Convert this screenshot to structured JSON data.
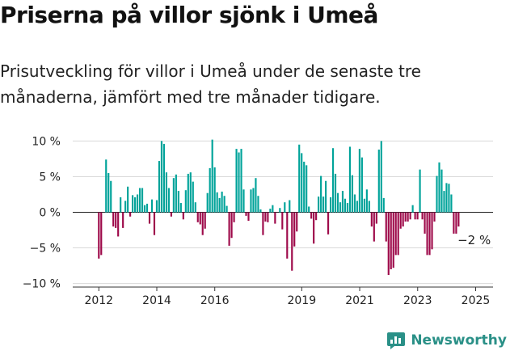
{
  "title": "Priserna på villor sjönk i Umeå",
  "subtitle": "Prisutveckling för villor i Umeå under de senaste tre månaderna, jämfört med tre månader tidigare.",
  "brand": {
    "name": "Newsworthy",
    "icon": "newsworthy-logo-icon"
  },
  "colors": {
    "positive": "#00a39a",
    "negative": "#9e0a4a",
    "grid": "#d9d9d9"
  },
  "chart_data": {
    "type": "bar",
    "title": "",
    "xlabel": "",
    "ylabel": "",
    "ylim": [
      -10.5,
      10.5
    ],
    "xlim": [
      2011.1,
      2025.6
    ],
    "y_ticks": [
      10,
      5,
      0,
      -5,
      -10
    ],
    "y_tick_labels": [
      "10 %",
      "5 %",
      "0 %",
      "−5 %",
      "−10 %"
    ],
    "x_ticks": [
      2012,
      2014,
      2016,
      2019,
      2021,
      2023,
      2025
    ],
    "x_tick_labels": [
      "2012",
      "2014",
      "2016",
      "2019",
      "2021",
      "2023",
      "2025"
    ],
    "grid": true,
    "annotation": {
      "text": "−2 %",
      "x": 2024.95,
      "y": -4.5
    },
    "x_start": 2012.0,
    "x_step": 0.0833,
    "values": [
      -6.5,
      -6.0,
      0,
      7.4,
      5.5,
      4.4,
      -2.0,
      -2.2,
      -3.4,
      2.1,
      -2.2,
      1.6,
      3.6,
      -0.6,
      2.4,
      2.1,
      2.5,
      3.4,
      3.4,
      1.0,
      1.2,
      -1.6,
      1.8,
      -3.2,
      1.7,
      7.2,
      10.0,
      9.6,
      5.6,
      3.4,
      -0.6,
      4.8,
      5.3,
      3.0,
      1.3,
      -1.0,
      3.1,
      5.4,
      5.6,
      4.3,
      1.4,
      -1.4,
      -1.7,
      -3.2,
      -2.3,
      2.7,
      6.2,
      10.2,
      6.3,
      2.8,
      2.0,
      2.9,
      2.3,
      0.9,
      -4.7,
      -3.6,
      -1.4,
      8.9,
      8.4,
      8.9,
      3.2,
      -0.5,
      -1.2,
      3.2,
      3.4,
      4.8,
      2.3,
      0.4,
      -3.2,
      -1.3,
      -1.4,
      0.5,
      1.0,
      -1.6,
      0,
      0.6,
      -2.4,
      1.4,
      -6.5,
      1.7,
      -8.2,
      -4.8,
      -2.7,
      9.5,
      8.3,
      7.1,
      6.6,
      0.8,
      -0.9,
      -4.4,
      -1.1,
      2.2,
      5.1,
      2.2,
      4.4,
      -3.1,
      2.1,
      9.0,
      5.4,
      2.7,
      1.4,
      3.0,
      1.9,
      1.3,
      9.2,
      5.2,
      2.5,
      1.6,
      8.9,
      7.7,
      1.9,
      3.2,
      1.6,
      -2.0,
      -4.1,
      -1.6,
      8.8,
      10.0,
      2.0,
      -4.1,
      -8.8,
      -8.0,
      -7.8,
      -6.0,
      -6.0,
      -2.3,
      -2.0,
      -1.3,
      -1.3,
      -1.0,
      1.0,
      -1.0,
      -1.0,
      6.0,
      -1.0,
      -3.0,
      -6.0,
      -6.0,
      -5.2,
      -1.3,
      5.1,
      7.0,
      6.0,
      3.0,
      4.1,
      4.0,
      2.5,
      -3.0,
      -3.0,
      -2.0
    ]
  }
}
